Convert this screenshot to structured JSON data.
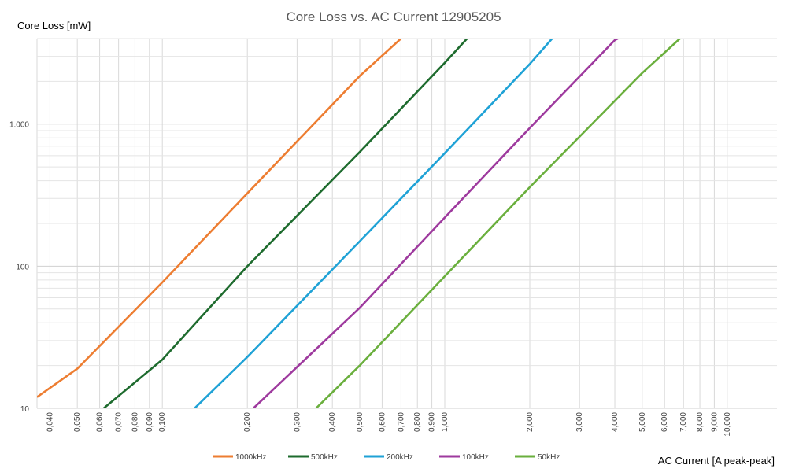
{
  "chart_data": {
    "type": "line",
    "title": "Core Loss vs. AC Current 12905205",
    "xlabel": "AC Current [A peak-peak]",
    "ylabel": "Core Loss [mW]",
    "x_scale": "log",
    "y_scale": "log",
    "xlim": [
      0.036,
      15
    ],
    "ylim": [
      10,
      4000
    ],
    "grid": true,
    "legend_position": "bottom",
    "x_ticks": [
      {
        "value": 0.04,
        "label": "0,040"
      },
      {
        "value": 0.05,
        "label": "0,050"
      },
      {
        "value": 0.06,
        "label": "0,060"
      },
      {
        "value": 0.07,
        "label": "0,070"
      },
      {
        "value": 0.08,
        "label": "0,080"
      },
      {
        "value": 0.09,
        "label": "0,090"
      },
      {
        "value": 0.1,
        "label": "0,100"
      },
      {
        "value": 0.2,
        "label": "0,200"
      },
      {
        "value": 0.3,
        "label": "0,300"
      },
      {
        "value": 0.4,
        "label": "0,400"
      },
      {
        "value": 0.5,
        "label": "0,500"
      },
      {
        "value": 0.6,
        "label": "0,600"
      },
      {
        "value": 0.7,
        "label": "0,700"
      },
      {
        "value": 0.8,
        "label": "0,800"
      },
      {
        "value": 0.9,
        "label": "0,900"
      },
      {
        "value": 1,
        "label": "1,000"
      },
      {
        "value": 2,
        "label": "2,000"
      },
      {
        "value": 3,
        "label": "3,000"
      },
      {
        "value": 4,
        "label": "4,000"
      },
      {
        "value": 5,
        "label": "5,000"
      },
      {
        "value": 6,
        "label": "6,000"
      },
      {
        "value": 7,
        "label": "7,000"
      },
      {
        "value": 8,
        "label": "8,000"
      },
      {
        "value": 9,
        "label": "9,000"
      },
      {
        "value": 10,
        "label": "10,000"
      }
    ],
    "y_ticks": [
      {
        "value": 10,
        "label": "10"
      },
      {
        "value": 100,
        "label": "100"
      },
      {
        "value": 1000,
        "label": "1.000"
      }
    ],
    "series": [
      {
        "name": "1000kHz",
        "color": "#ED7D31",
        "x": [
          0.036,
          0.05,
          0.1,
          0.2,
          0.5,
          0.7
        ],
        "y": [
          12,
          19,
          77,
          326,
          2180,
          4000
        ]
      },
      {
        "name": "500kHz",
        "color": "#1E6B2E",
        "x": [
          0.062,
          0.1,
          0.2,
          0.5,
          1,
          1.2
        ],
        "y": [
          10,
          22,
          100,
          636,
          2700,
          4000
        ]
      },
      {
        "name": "200kHz",
        "color": "#1FA2D6",
        "x": [
          0.13,
          0.2,
          0.5,
          1,
          2,
          2.4
        ],
        "y": [
          10,
          23,
          150,
          624,
          2650,
          4000
        ]
      },
      {
        "name": "100kHz",
        "color": "#9E3A9E",
        "x": [
          0.21,
          0.5,
          1,
          2,
          4,
          4.1
        ],
        "y": [
          10,
          51,
          220,
          940,
          3900,
          4000
        ]
      },
      {
        "name": "50kHz",
        "color": "#6AAF3D",
        "x": [
          0.35,
          0.5,
          1,
          2,
          5,
          6.8
        ],
        "y": [
          10,
          20,
          85,
          360,
          2290,
          4000
        ]
      }
    ]
  }
}
